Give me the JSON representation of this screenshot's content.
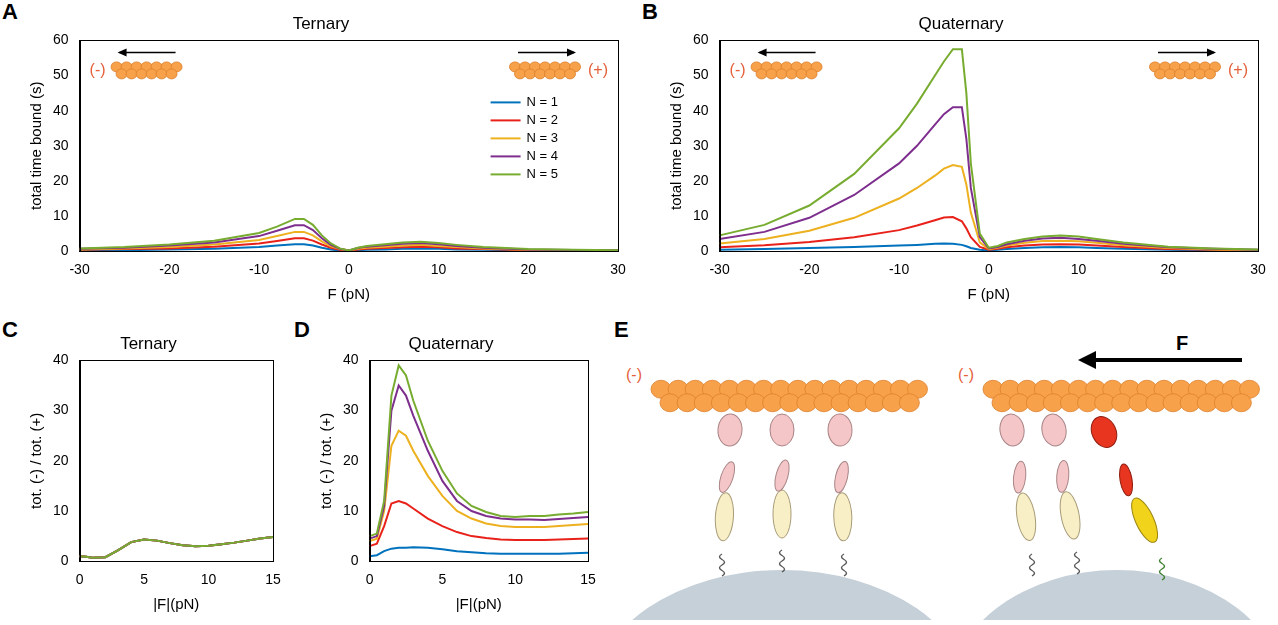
{
  "chart_data": [
    {
      "panel": "A",
      "type": "line",
      "title": "Ternary",
      "x_label": "F (pN)",
      "y_label": "total time bound (s)",
      "annotations": [
        "(-)",
        "(+)"
      ],
      "legend": "upper right",
      "grid": false,
      "xlim": [
        -30,
        30
      ],
      "xticks": [
        -30,
        -20,
        -10,
        0,
        10,
        20,
        30
      ],
      "ylim": [
        0,
        60
      ],
      "yticks": [
        0,
        10,
        20,
        30,
        40,
        50,
        60
      ],
      "x": [
        -30,
        -25,
        -20,
        -15,
        -10,
        -8,
        -6,
        -5,
        -4,
        -3,
        -2,
        -1,
        0,
        1,
        2,
        4,
        6,
        8,
        10,
        12,
        15,
        20,
        25,
        30
      ],
      "series": [
        {
          "name": "N = 1",
          "color": "#0072bd",
          "values": [
            0.2,
            0.3,
            0.5,
            0.7,
            1.2,
            1.6,
            2.0,
            2.0,
            1.6,
            1.0,
            0.5,
            0.2,
            0.1,
            0.3,
            0.4,
            0.5,
            0.7,
            0.8,
            0.7,
            0.5,
            0.4,
            0.2,
            0.1,
            0.1
          ]
        },
        {
          "name": "N = 2",
          "color": "#e8221b",
          "values": [
            0.4,
            0.6,
            0.8,
            1.3,
            2.2,
            2.9,
            3.7,
            3.7,
            3.0,
            1.9,
            1.0,
            0.4,
            0.1,
            0.5,
            0.7,
            0.9,
            1.1,
            1.3,
            1.1,
            0.8,
            0.6,
            0.3,
            0.2,
            0.15
          ]
        },
        {
          "name": "N = 3",
          "color": "#edb120",
          "values": [
            0.5,
            0.8,
            1.2,
            1.9,
            3.2,
            4.3,
            5.5,
            5.5,
            4.5,
            2.8,
            1.4,
            0.6,
            0.2,
            0.7,
            1.0,
            1.3,
            1.6,
            1.8,
            1.5,
            1.2,
            0.8,
            0.4,
            0.3,
            0.2
          ]
        },
        {
          "name": "N = 4",
          "color": "#7e2f8e",
          "values": [
            0.7,
            1.0,
            1.6,
            2.5,
            4.3,
            5.8,
            7.4,
            7.4,
            6.0,
            3.7,
            1.8,
            0.7,
            0.2,
            0.9,
            1.3,
            1.7,
            2.1,
            2.3,
            2.0,
            1.5,
            1.0,
            0.5,
            0.35,
            0.25
          ]
        },
        {
          "name": "N = 5",
          "color": "#77ac30",
          "values": [
            0.8,
            1.2,
            1.9,
            3.0,
            5.2,
            7.0,
            9.2,
            9.2,
            7.5,
            4.5,
            2.2,
            0.8,
            0.2,
            1.0,
            1.5,
            2.0,
            2.5,
            2.7,
            2.3,
            1.8,
            1.2,
            0.6,
            0.4,
            0.3
          ]
        }
      ]
    },
    {
      "panel": "B",
      "type": "line",
      "title": "Quaternary",
      "x_label": "F (pN)",
      "y_label": "total time bound (s)",
      "annotations": [
        "(-)",
        "(+)"
      ],
      "grid": false,
      "xlim": [
        -30,
        30
      ],
      "xticks": [
        -30,
        -20,
        -10,
        0,
        10,
        20,
        30
      ],
      "ylim": [
        0,
        60
      ],
      "yticks": [
        0,
        10,
        20,
        30,
        40,
        50,
        60
      ],
      "x": [
        -30,
        -25,
        -20,
        -15,
        -10,
        -8,
        -6,
        -5,
        -4,
        -3,
        -2.5,
        -2,
        -1,
        0,
        1,
        2,
        4,
        6,
        8,
        10,
        12,
        15,
        20,
        25,
        30
      ],
      "series": [
        {
          "color": "#0072bd",
          "values": [
            0.4,
            0.6,
            0.9,
            1.2,
            1.6,
            1.8,
            2.1,
            2.2,
            2.1,
            1.8,
            1.4,
            0.9,
            0.4,
            0.2,
            0.4,
            0.6,
            0.9,
            1.1,
            1.2,
            1.1,
            0.9,
            0.7,
            0.4,
            0.2,
            0.1
          ]
        },
        {
          "color": "#e8221b",
          "values": [
            1.1,
            1.7,
            2.6,
            4,
            6,
            7.3,
            8.8,
            9.6,
            9.7,
            8.5,
            6.5,
            4,
            1.2,
            0.4,
            0.7,
            1.1,
            1.6,
            1.9,
            2.0,
            1.9,
            1.6,
            1.2,
            0.6,
            0.4,
            0.2
          ]
        },
        {
          "color": "#edb120",
          "values": [
            2.2,
            3.5,
            5.8,
            9.5,
            15,
            18,
            21.5,
            23.5,
            24.5,
            24,
            19,
            11,
            2.5,
            0.6,
            1.0,
            1.6,
            2.4,
            2.9,
            3.0,
            2.8,
            2.4,
            1.7,
            0.9,
            0.5,
            0.3
          ]
        },
        {
          "color": "#7e2f8e",
          "values": [
            3.5,
            5.5,
            9.5,
            16,
            25,
            30,
            36,
            39,
            41,
            41,
            32,
            18,
            4,
            0.8,
            1.2,
            2.0,
            3.0,
            3.6,
            3.8,
            3.5,
            3.0,
            2.1,
            1.1,
            0.7,
            0.4
          ]
        },
        {
          "color": "#77ac30",
          "values": [
            4.5,
            7.5,
            13,
            22,
            35,
            42,
            50,
            54,
            57.5,
            57.5,
            45,
            25,
            5,
            1,
            1.5,
            2.5,
            3.5,
            4.2,
            4.5,
            4.2,
            3.5,
            2.5,
            1.3,
            0.8,
            0.5
          ]
        }
      ]
    },
    {
      "panel": "C",
      "type": "line",
      "title": "Ternary",
      "x_label": "|F|(pN)",
      "y_label": "tot. (-) / tot. (+)",
      "grid": false,
      "xlim": [
        0,
        15
      ],
      "xticks": [
        0,
        5,
        10,
        15
      ],
      "ylim": [
        0,
        40
      ],
      "yticks": [
        0,
        10,
        20,
        30,
        40
      ],
      "x": [
        0,
        0.5,
        1,
        2,
        3,
        4,
        5,
        6,
        7,
        8,
        9,
        10,
        11,
        12,
        13,
        14,
        15
      ],
      "series": [
        {
          "color": "#0072bd",
          "values": [
            1.0,
            0.9,
            0.7,
            0.8,
            2.2,
            3.8,
            4.3,
            4.1,
            3.6,
            3.2,
            3.0,
            3.1,
            3.4,
            3.7,
            4.1,
            4.5,
            4.8
          ]
        },
        {
          "color": "#e8221b",
          "values": [
            1.0,
            0.9,
            0.7,
            0.8,
            2.2,
            3.8,
            4.3,
            4.1,
            3.6,
            3.2,
            3.0,
            3.1,
            3.4,
            3.7,
            4.1,
            4.5,
            4.8
          ]
        },
        {
          "color": "#edb120",
          "values": [
            1.0,
            0.9,
            0.7,
            0.8,
            2.2,
            3.8,
            4.3,
            4.1,
            3.6,
            3.2,
            3.0,
            3.1,
            3.4,
            3.7,
            4.1,
            4.5,
            4.8
          ]
        },
        {
          "color": "#7e2f8e",
          "values": [
            1.0,
            0.9,
            0.7,
            0.8,
            2.2,
            3.8,
            4.3,
            4.1,
            3.6,
            3.2,
            3.0,
            3.1,
            3.4,
            3.7,
            4.1,
            4.5,
            4.8
          ]
        },
        {
          "color": "#77ac30",
          "values": [
            1.0,
            0.9,
            0.7,
            0.8,
            2.2,
            3.8,
            4.3,
            4.1,
            3.6,
            3.2,
            3.0,
            3.1,
            3.4,
            3.7,
            4.1,
            4.5,
            4.8
          ]
        }
      ]
    },
    {
      "panel": "D",
      "type": "line",
      "title": "Quaternary",
      "x_label": "|F|(pN)",
      "y_label": "tot. (-) / tot. (+)",
      "grid": false,
      "xlim": [
        0,
        15
      ],
      "xticks": [
        0,
        5,
        10,
        15
      ],
      "ylim": [
        0,
        40
      ],
      "yticks": [
        0,
        10,
        20,
        30,
        40
      ],
      "x": [
        0,
        0.5,
        1,
        1.5,
        2,
        2.5,
        3,
        4,
        5,
        6,
        7,
        8,
        9,
        10,
        11,
        12,
        13,
        14,
        15
      ],
      "series": [
        {
          "color": "#0072bd",
          "values": [
            1,
            1.2,
            2,
            2.5,
            2.7,
            2.7,
            2.8,
            2.7,
            2.4,
            2,
            1.8,
            1.6,
            1.5,
            1.5,
            1.5,
            1.5,
            1.5,
            1.6,
            1.7
          ]
        },
        {
          "color": "#e8221b",
          "values": [
            3,
            3.5,
            7,
            11.5,
            12,
            11.5,
            10.5,
            8.5,
            7,
            5.8,
            5,
            4.6,
            4.3,
            4.2,
            4.2,
            4.2,
            4.3,
            4.4,
            4.5
          ]
        },
        {
          "color": "#edb120",
          "values": [
            4,
            4.5,
            10,
            23,
            26,
            25,
            22,
            17,
            13,
            10,
            8.5,
            7.5,
            7,
            6.8,
            6.8,
            6.8,
            7,
            7.2,
            7.4
          ]
        },
        {
          "color": "#7e2f8e",
          "values": [
            4.5,
            5,
            11,
            30,
            35,
            33,
            29,
            22,
            16,
            12,
            10,
            9,
            8.5,
            8.3,
            8.3,
            8.2,
            8.4,
            8.6,
            8.8
          ]
        },
        {
          "color": "#77ac30",
          "values": [
            5,
            5.5,
            12,
            33,
            39,
            37,
            32,
            24,
            18,
            13.5,
            11,
            9.8,
            9,
            8.8,
            9,
            9,
            9.3,
            9.5,
            9.8
          ]
        }
      ]
    }
  ],
  "diagram": {
    "panel": "E",
    "scenes": [
      {
        "end_label": "(-)"
      },
      {
        "end_label": "(-)",
        "force_label": "F"
      }
    ]
  }
}
